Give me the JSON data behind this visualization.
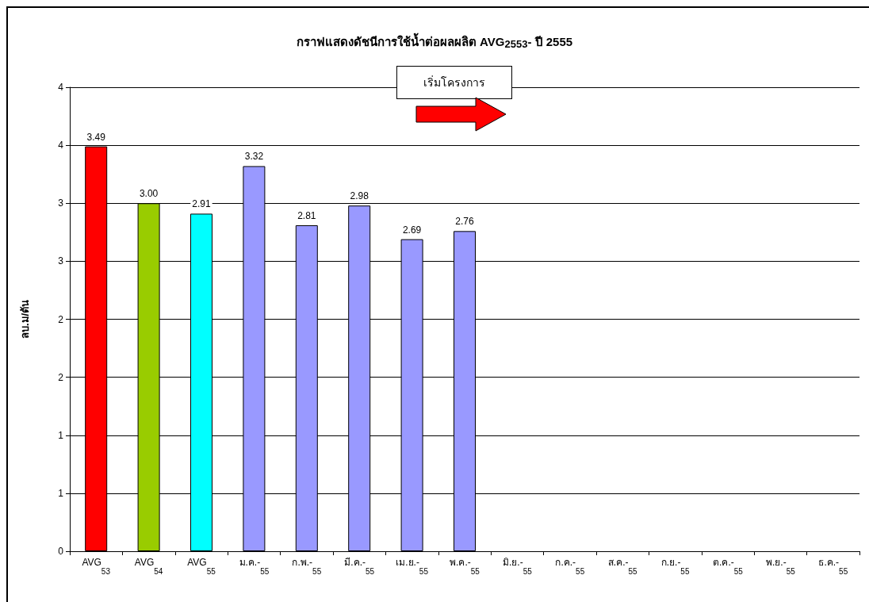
{
  "chart_data": {
    "type": "bar",
    "title": "กราฟแสดงดัชนีการใช้น้ำต่อผลผลิต AVG$_{2553}$- ปี 2555",
    "ylabel": "ลบ.ม/ตัน",
    "categories": [
      "AVG$_{53}$",
      "AVG$_{54}$",
      "AVG$_{55}$",
      "ม.ค.-$_{55}$",
      "ก.พ.-$_{55}$",
      "มี.ค.-$_{55}$",
      "เม.ย.-$_{55}$",
      "พ.ค.-$_{55}$",
      "มิ.ย.-$_{55}$",
      "ก.ค.-$_{55}$",
      "ส.ค.-$_{55}$",
      "ก.ย.-$_{55}$",
      "ต.ค.-$_{55}$",
      "พ.ย.-$_{55}$",
      "ธ.ค.-$_{55}$"
    ],
    "values": [
      3.49,
      3.0,
      2.91,
      3.32,
      2.81,
      2.98,
      2.69,
      2.76,
      null,
      null,
      null,
      null,
      null,
      null,
      null
    ],
    "value_labels": [
      "3.49",
      "3.00",
      "2.91",
      "3.32",
      "2.81",
      "2.98",
      "2.69",
      "2.76",
      null,
      null,
      null,
      null,
      null,
      null,
      null
    ],
    "colors": [
      "#ff0000",
      "#99cc00",
      "#00ffff",
      "#9999ff",
      "#9999ff",
      "#9999ff",
      "#9999ff",
      "#9999ff",
      "#9999ff",
      "#9999ff",
      "#9999ff",
      "#9999ff",
      "#9999ff",
      "#9999ff",
      "#9999ff"
    ],
    "ylim": [
      0,
      4
    ],
    "yticks": [
      0,
      {
        "value": 0.5,
        "label": "1"
      },
      1,
      {
        "value": 1.5,
        "label": "2"
      },
      2,
      {
        "value": 2.5,
        "label": "3"
      },
      3,
      {
        "value": 3.5,
        "label": "4"
      },
      4
    ],
    "grid": "y",
    "annotations": [
      "เริ่มโครงการ"
    ]
  }
}
